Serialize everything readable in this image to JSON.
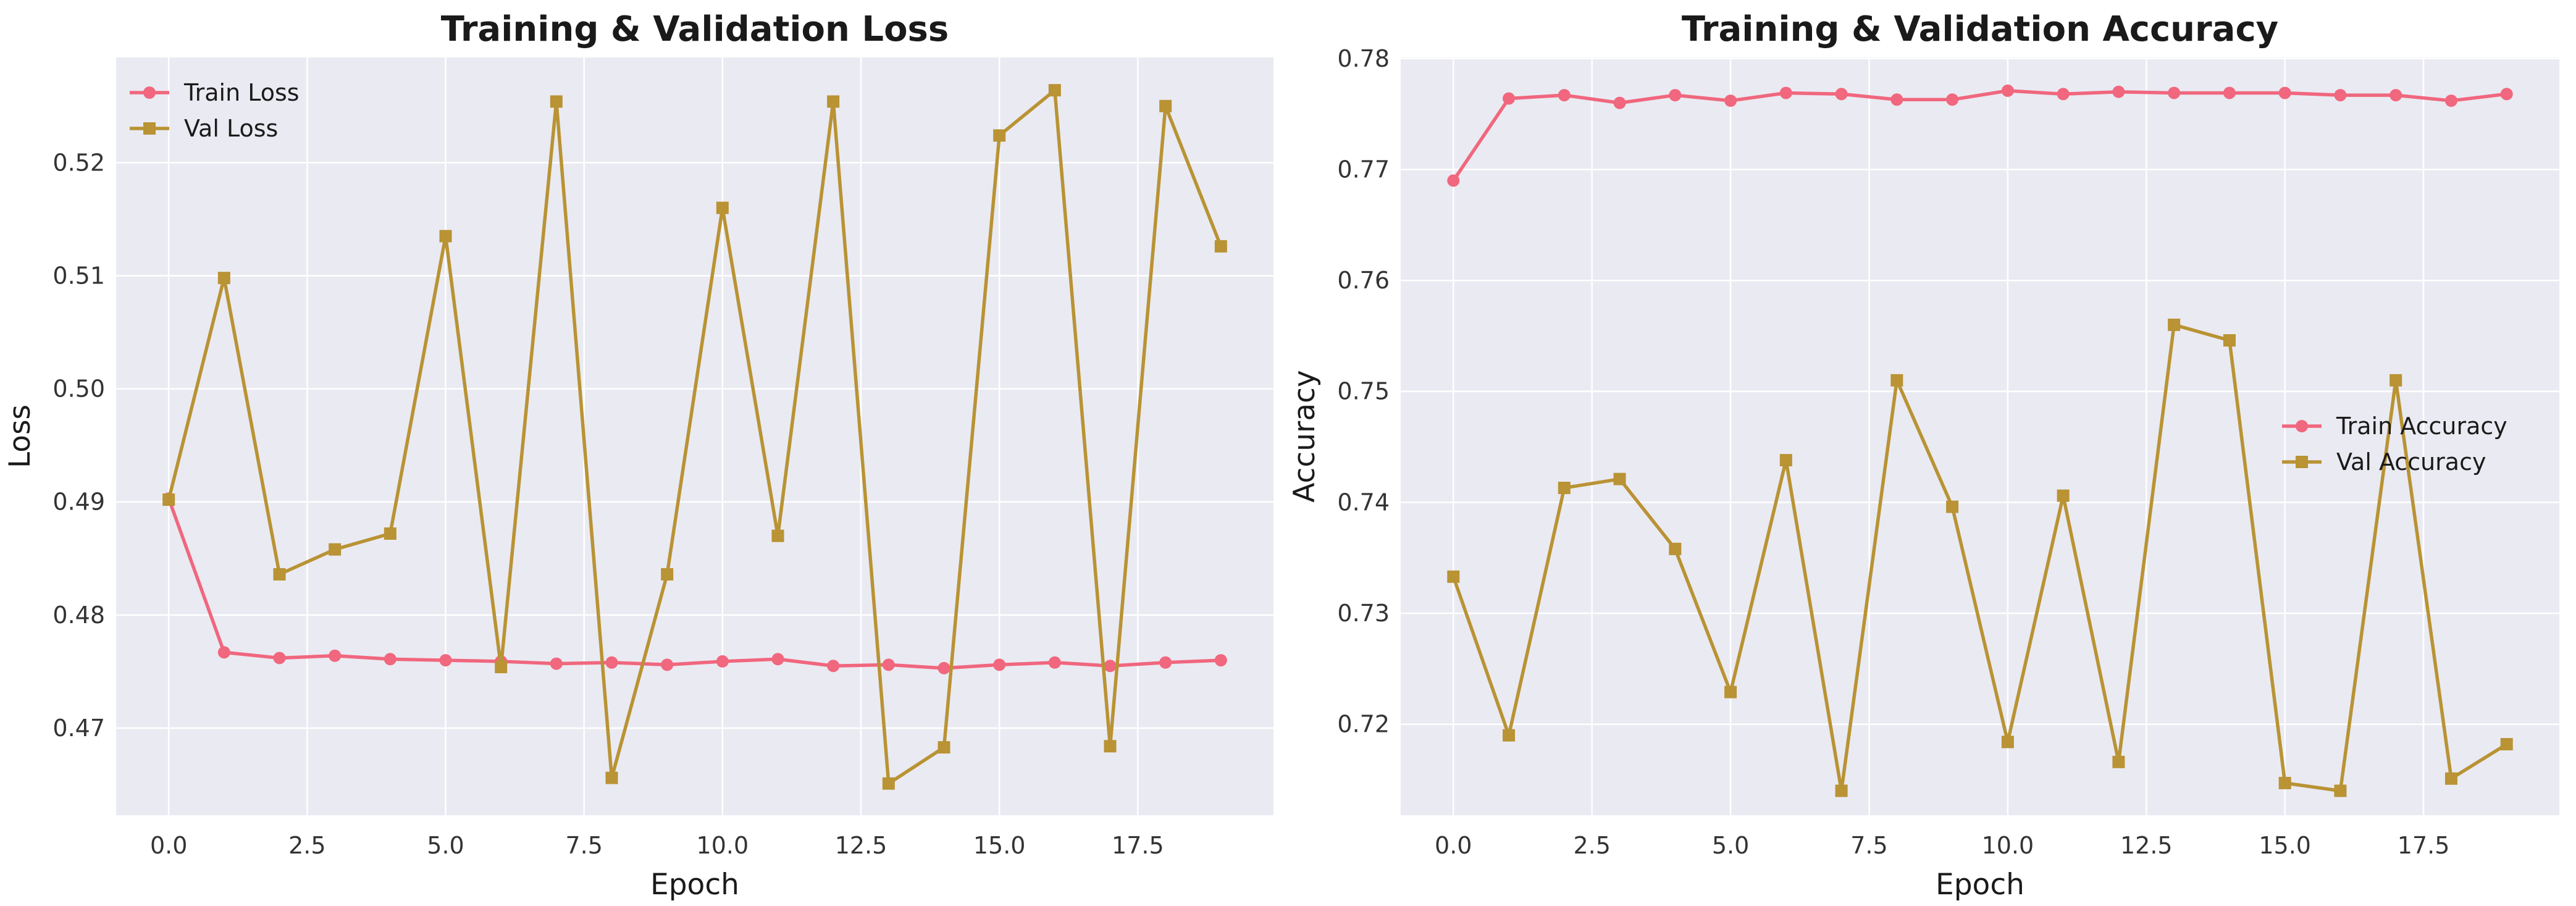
{
  "chart_data": [
    {
      "type": "line",
      "title": "Training & Validation Loss",
      "xlabel": "Epoch",
      "ylabel": "Loss",
      "xlim": [
        -0.95,
        19.95
      ],
      "ylim": [
        0.4623,
        0.5293
      ],
      "xticks": [
        0.0,
        2.5,
        5.0,
        7.5,
        10.0,
        12.5,
        15.0,
        17.5
      ],
      "xtick_labels": [
        "0.0",
        "2.5",
        "5.0",
        "7.5",
        "10.0",
        "12.5",
        "15.0",
        "17.5"
      ],
      "yticks": [
        0.47,
        0.48,
        0.49,
        0.5,
        0.51,
        0.52
      ],
      "ytick_labels": [
        "0.47",
        "0.48",
        "0.49",
        "0.50",
        "0.51",
        "0.52"
      ],
      "grid": true,
      "legend_position": "upper left",
      "x": [
        0,
        1,
        2,
        3,
        4,
        5,
        6,
        7,
        8,
        9,
        10,
        11,
        12,
        13,
        14,
        15,
        16,
        17,
        18,
        19
      ],
      "series": [
        {
          "name": "Train Loss",
          "color": "#f0677e",
          "marker": "circle",
          "values": [
            0.4903,
            0.4767,
            0.4762,
            0.4764,
            0.4761,
            0.476,
            0.4759,
            0.4757,
            0.4758,
            0.4756,
            0.4759,
            0.4761,
            0.4755,
            0.4756,
            0.4753,
            0.4756,
            0.4758,
            0.4755,
            0.4758,
            0.476
          ]
        },
        {
          "name": "Val Loss",
          "color": "#b99334",
          "marker": "square",
          "values": [
            0.4902,
            0.5098,
            0.4836,
            0.4858,
            0.4872,
            0.5135,
            0.4754,
            0.5254,
            0.4656,
            0.4836,
            0.516,
            0.487,
            0.5254,
            0.4651,
            0.4683,
            0.5224,
            0.5264,
            0.4684,
            0.525,
            0.5126
          ]
        }
      ]
    },
    {
      "type": "line",
      "title": "Training & Validation Accuracy",
      "xlabel": "Epoch",
      "ylabel": "Accuracy",
      "xlim": [
        -0.95,
        19.95
      ],
      "ylim": [
        0.7118,
        0.7801
      ],
      "xticks": [
        0.0,
        2.5,
        5.0,
        7.5,
        10.0,
        12.5,
        15.0,
        17.5
      ],
      "xtick_labels": [
        "0.0",
        "2.5",
        "5.0",
        "7.5",
        "10.0",
        "12.5",
        "15.0",
        "17.5"
      ],
      "yticks": [
        0.72,
        0.73,
        0.74,
        0.75,
        0.76,
        0.77,
        0.78
      ],
      "ytick_labels": [
        "0.72",
        "0.73",
        "0.74",
        "0.75",
        "0.76",
        "0.77",
        "0.78"
      ],
      "grid": true,
      "legend_position": "center right",
      "x": [
        0,
        1,
        2,
        3,
        4,
        5,
        6,
        7,
        8,
        9,
        10,
        11,
        12,
        13,
        14,
        15,
        16,
        17,
        18,
        19
      ],
      "series": [
        {
          "name": "Train Accuracy",
          "color": "#f0677e",
          "marker": "circle",
          "values": [
            0.769,
            0.7764,
            0.7767,
            0.776,
            0.7767,
            0.7762,
            0.7769,
            0.7768,
            0.7763,
            0.7763,
            0.7771,
            0.7768,
            0.777,
            0.7769,
            0.7769,
            0.7769,
            0.7767,
            0.7767,
            0.7762,
            0.7768
          ]
        },
        {
          "name": "Val Accuracy",
          "color": "#b99334",
          "marker": "square",
          "values": [
            0.7333,
            0.719,
            0.7413,
            0.7421,
            0.7358,
            0.7229,
            0.7438,
            0.714,
            0.751,
            0.7396,
            0.7184,
            0.7406,
            0.7166,
            0.756,
            0.7546,
            0.7147,
            0.714,
            0.751,
            0.7151,
            0.7182
          ]
        }
      ]
    }
  ],
  "colors": {
    "plot_background": "#eaeaf2",
    "grid": "#ffffff",
    "train": "#f0677e",
    "val": "#b99334"
  }
}
